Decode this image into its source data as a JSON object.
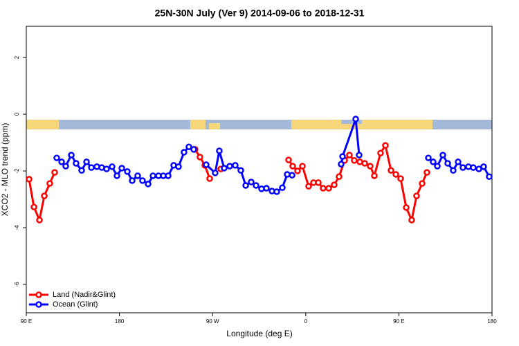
{
  "chart_data": {
    "type": "line",
    "title": "25N-30N July (Ver 9)   2014-09-06 to 2018-12-31",
    "xlabel": "Longitude (deg E)",
    "ylabel": "XCO2 - MLO trend (ppm)",
    "xlim": [
      90,
      540
    ],
    "ylim": [
      -7,
      3.1
    ],
    "xticks": [
      {
        "value": 90,
        "label": "90 E"
      },
      180,
      {
        "value": 270,
        "label": "90 W"
      },
      {
        "value": 360,
        "label": "0"
      },
      {
        "value": 450,
        "label": "90 E"
      },
      {
        "value": 540,
        "label": "180"
      }
    ],
    "yticks": [
      -6,
      -4,
      -2,
      0,
      2
    ],
    "legend": "bottom-left",
    "series": [
      {
        "name": "Land (Nadir&Glint)",
        "color": "#ff0000",
        "x": [
          92.7,
          97.4,
          102.7,
          107.4,
          112.7,
          117.4,
          null,
          253.1,
          257.8,
          262.5,
          267.2,
          null,
          277.9,
          null,
          343.4,
          347.4,
          352.1,
          356.8,
          362.8,
          367.5,
          372.2,
          376.8,
          382.2,
          387.5,
          392.2,
          397.6,
          402.2,
          406.9,
          412.3,
          417.0,
          422.3,
          426.3,
          432.3,
          437.0,
          442.4,
          447.1,
          451.7,
          457.1,
          462.4,
          467.1,
          472.5,
          477.1
        ],
        "values": [
          -2.29,
          -3.27,
          -3.73,
          -2.88,
          -2.44,
          -2.05,
          null,
          -1.24,
          -1.51,
          -1.8,
          -2.27,
          null,
          -1.93,
          null,
          -1.61,
          -1.83,
          -2.0,
          -1.83,
          -2.54,
          -2.41,
          -2.41,
          -2.61,
          -2.61,
          -2.49,
          -2.2,
          -1.63,
          -1.44,
          -1.63,
          -1.68,
          -1.73,
          -1.83,
          -2.17,
          -1.37,
          -1.1,
          -1.98,
          -2.12,
          -2.27,
          -3.29,
          -3.73,
          -2.88,
          -2.44,
          -2.05
        ]
      },
      {
        "name": "Ocean (Glint)",
        "color": "#0000ff",
        "x": [
          119.4,
          124.1,
          128.1,
          133.5,
          138.1,
          143.5,
          148.2,
          152.9,
          158.2,
          162.9,
          167.6,
          172.9,
          177.6,
          182.3,
          187.6,
          192.3,
          197.6,
          202.3,
          207.7,
          212.4,
          217.7,
          222.4,
          227.1,
          232.4,
          237.1,
          242.4,
          247.1,
          251.8,
          null,
          263.8,
          272.5,
          276.5,
          281.2,
          286.6,
          291.9,
          297.3,
          302.0,
          307.3,
          312.0,
          317.3,
          322.0,
          327.4,
          332.0,
          337.4,
          342.1,
          346.8,
          null,
          394.2,
          395.6,
          408.3,
          411.6,
          null,
          478.5,
          483.1,
          487.2,
          492.5,
          497.2,
          502.5,
          507.2,
          511.9,
          517.2,
          521.9,
          527.3,
          531.9,
          537.3
        ],
        "values": [
          -1.54,
          -1.68,
          -1.83,
          -1.44,
          -1.73,
          -1.98,
          -1.68,
          -1.88,
          -1.85,
          -1.88,
          -1.93,
          -1.85,
          -2.17,
          -1.9,
          -2.02,
          -2.34,
          -2.17,
          -2.34,
          -2.46,
          -2.17,
          -2.17,
          -2.17,
          -2.17,
          -1.8,
          -1.85,
          -1.34,
          -1.15,
          -1.24,
          null,
          -1.78,
          -2.07,
          -1.29,
          -1.9,
          -1.83,
          -1.8,
          -1.98,
          -2.51,
          -2.39,
          -2.51,
          -2.63,
          -2.61,
          -2.71,
          -2.73,
          -2.59,
          -2.12,
          -2.15,
          null,
          -1.76,
          -1.49,
          -0.17,
          -1.44,
          null,
          -1.54,
          -1.68,
          -1.83,
          -1.44,
          -1.73,
          -1.98,
          -1.68,
          -1.88,
          -1.85,
          -1.88,
          -1.93,
          -1.85,
          -2.2
        ]
      }
    ]
  }
}
